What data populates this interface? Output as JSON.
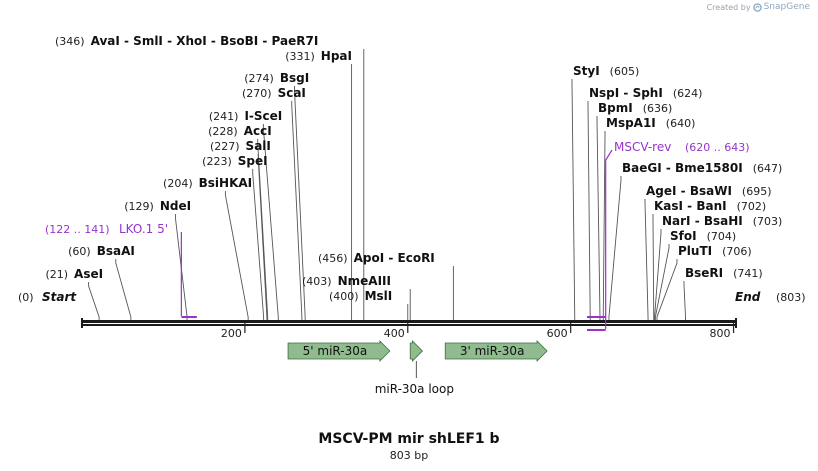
{
  "credit": {
    "label": "Created by",
    "brand": "SnapGene"
  },
  "plasmid": {
    "name": "MSCV-PM mir shLEF1 b",
    "length_label": "803 bp"
  },
  "sequence": {
    "length": 803,
    "start_label": "Start",
    "end_label": "End",
    "start_pos": "(0)",
    "end_pos": "(803)"
  },
  "ruler": {
    "ticks": [
      200,
      400,
      600,
      800
    ]
  },
  "colors": {
    "feature": "#8fbb8f",
    "primer": "#9933cc",
    "backbone": "#222222"
  },
  "features": [
    {
      "name": "5' miR-30a",
      "start": 253,
      "end": 378,
      "direction": "forward",
      "label_inside": true
    },
    {
      "name": "miR-30a loop",
      "start": 403,
      "end": 418,
      "direction": "forward",
      "label_inside": false
    },
    {
      "name": "3' miR-30a",
      "start": 446,
      "end": 571,
      "direction": "forward",
      "label_inside": true
    }
  ],
  "primers": [
    {
      "name": "LKO.1 5'",
      "range": "(122 .. 141)",
      "start": 122,
      "end": 141,
      "side": "left"
    },
    {
      "name": "MSCV-rev",
      "range": "(620 .. 643)",
      "start": 620,
      "end": 643,
      "side": "right"
    }
  ],
  "enzymes": [
    {
      "names": [
        "AseI"
      ],
      "pos_label": "(21)",
      "pos": 21,
      "side": "left"
    },
    {
      "names": [
        "BsaAI"
      ],
      "pos_label": "(60)",
      "pos": 60,
      "side": "left"
    },
    {
      "names": [
        "NdeI"
      ],
      "pos_label": "(129)",
      "pos": 129,
      "side": "left"
    },
    {
      "names": [
        "BsiHKAI"
      ],
      "pos_label": "(204)",
      "pos": 204,
      "side": "left"
    },
    {
      "names": [
        "SpeI"
      ],
      "pos_label": "(223)",
      "pos": 223,
      "side": "left"
    },
    {
      "names": [
        "SalI"
      ],
      "pos_label": "(227)",
      "pos": 227,
      "side": "left"
    },
    {
      "names": [
        "AccI"
      ],
      "pos_label": "(228)",
      "pos": 228,
      "side": "left"
    },
    {
      "names": [
        "I-SceI"
      ],
      "pos_label": "(241)",
      "pos": 241,
      "side": "left"
    },
    {
      "names": [
        "ScaI"
      ],
      "pos_label": "(270)",
      "pos": 270,
      "side": "left"
    },
    {
      "names": [
        "BsgI"
      ],
      "pos_label": "(274)",
      "pos": 274,
      "side": "left"
    },
    {
      "names": [
        "HpaI"
      ],
      "pos_label": "(331)",
      "pos": 331,
      "side": "left"
    },
    {
      "names": [
        "AvaI",
        "SmlI",
        "XhoI",
        "BsoBI",
        "PaeR7I"
      ],
      "pos_label": "(346)",
      "pos": 346,
      "side": "left"
    },
    {
      "names": [
        "MslI"
      ],
      "pos_label": "(400)",
      "pos": 400,
      "side": "left"
    },
    {
      "names": [
        "NmeAIII"
      ],
      "pos_label": "(403)",
      "pos": 403,
      "side": "left"
    },
    {
      "names": [
        "ApoI",
        "EcoRI"
      ],
      "pos_label": "(456)",
      "pos": 456,
      "side": "left"
    },
    {
      "names": [
        "StyI"
      ],
      "pos_label": "(605)",
      "pos": 605,
      "side": "right"
    },
    {
      "names": [
        "NspI",
        "SphI"
      ],
      "pos_label": "(624)",
      "pos": 624,
      "side": "right"
    },
    {
      "names": [
        "BpmI"
      ],
      "pos_label": "(636)",
      "pos": 636,
      "side": "right"
    },
    {
      "names": [
        "MspA1I"
      ],
      "pos_label": "(640)",
      "pos": 640,
      "side": "right"
    },
    {
      "names": [
        "BaeGI",
        "Bme1580I"
      ],
      "pos_label": "(647)",
      "pos": 647,
      "side": "right"
    },
    {
      "names": [
        "AgeI",
        "BsaWI"
      ],
      "pos_label": "(695)",
      "pos": 695,
      "side": "right"
    },
    {
      "names": [
        "KasI",
        "BanI"
      ],
      "pos_label": "(702)",
      "pos": 702,
      "side": "right"
    },
    {
      "names": [
        "NarI",
        "BsaHI"
      ],
      "pos_label": "(703)",
      "pos": 703,
      "side": "right"
    },
    {
      "names": [
        "SfoI"
      ],
      "pos_label": "(704)",
      "pos": 704,
      "side": "right"
    },
    {
      "names": [
        "PluTI"
      ],
      "pos_label": "(706)",
      "pos": 706,
      "side": "right"
    },
    {
      "names": [
        "BseRI"
      ],
      "pos_label": "(741)",
      "pos": 741,
      "side": "right"
    }
  ]
}
